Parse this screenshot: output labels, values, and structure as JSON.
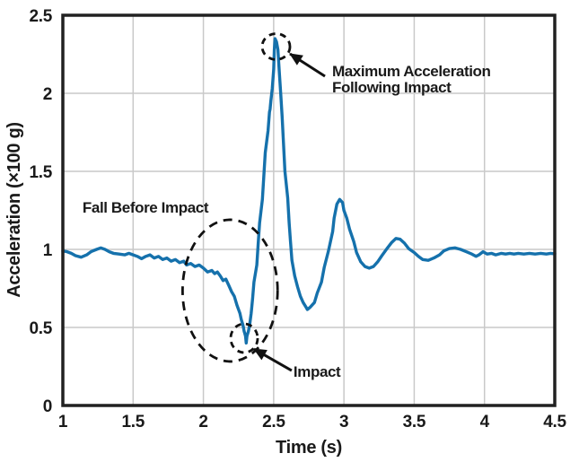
{
  "figure": {
    "background": "#ffffff"
  },
  "chart_data": {
    "type": "line",
    "title": "",
    "xlabel": "Time (s)",
    "ylabel": "Acceleration (×100 g)",
    "xlim": [
      1,
      4.5
    ],
    "ylim": [
      0,
      2.5
    ],
    "x_ticks": {
      "values": [
        1,
        1.5,
        2,
        2.5,
        3,
        3.5,
        4,
        4.5
      ],
      "labels": [
        "1",
        "1.5",
        "2",
        "2.5",
        "3",
        "3.5",
        "4",
        "4.5"
      ]
    },
    "y_ticks": {
      "values": [
        0,
        0.5,
        1,
        1.5,
        2,
        2.5
      ],
      "labels": [
        "0",
        "0.5",
        "1",
        "1.5",
        "2",
        "2.5"
      ]
    },
    "grid": {
      "show": true,
      "color": "#c9c9c9",
      "x_lines": [
        1.5,
        2,
        2.5,
        3,
        3.5,
        4
      ],
      "y_lines": [
        0.5,
        1,
        1.5,
        2
      ]
    },
    "frame_color": "#212121",
    "text_color": "#1a1a1a",
    "annotation_color": "#111111",
    "legend": {
      "show": false
    },
    "series": [
      {
        "name": "acceleration",
        "color": "#1571ac",
        "points": [
          [
            1.0,
            0.99
          ],
          [
            1.03,
            0.985
          ],
          [
            1.06,
            0.975
          ],
          [
            1.09,
            0.96
          ],
          [
            1.13,
            0.95
          ],
          [
            1.17,
            0.965
          ],
          [
            1.2,
            0.985
          ],
          [
            1.24,
            1.0
          ],
          [
            1.27,
            1.01
          ],
          [
            1.3,
            1.0
          ],
          [
            1.33,
            0.985
          ],
          [
            1.36,
            0.975
          ],
          [
            1.4,
            0.97
          ],
          [
            1.44,
            0.965
          ],
          [
            1.47,
            0.975
          ],
          [
            1.5,
            0.965
          ],
          [
            1.53,
            0.955
          ],
          [
            1.56,
            0.94
          ],
          [
            1.59,
            0.955
          ],
          [
            1.62,
            0.965
          ],
          [
            1.65,
            0.945
          ],
          [
            1.68,
            0.955
          ],
          [
            1.71,
            0.935
          ],
          [
            1.74,
            0.945
          ],
          [
            1.77,
            0.925
          ],
          [
            1.8,
            0.935
          ],
          [
            1.83,
            0.915
          ],
          [
            1.86,
            0.925
          ],
          [
            1.88,
            0.9
          ],
          [
            1.91,
            0.91
          ],
          [
            1.94,
            0.89
          ],
          [
            1.97,
            0.9
          ],
          [
            2.0,
            0.88
          ],
          [
            2.03,
            0.855
          ],
          [
            2.06,
            0.865
          ],
          [
            2.08,
            0.845
          ],
          [
            2.1,
            0.855
          ],
          [
            2.12,
            0.83
          ],
          [
            2.14,
            0.8
          ],
          [
            2.16,
            0.81
          ],
          [
            2.18,
            0.77
          ],
          [
            2.2,
            0.73
          ],
          [
            2.22,
            0.7
          ],
          [
            2.24,
            0.64
          ],
          [
            2.26,
            0.59
          ],
          [
            2.27,
            0.55
          ],
          [
            2.28,
            0.52
          ],
          [
            2.285,
            0.5
          ],
          [
            2.29,
            0.475
          ],
          [
            2.295,
            0.46
          ],
          [
            2.3,
            0.445
          ],
          [
            2.305,
            0.4
          ],
          [
            2.31,
            0.445
          ],
          [
            2.32,
            0.475
          ],
          [
            2.33,
            0.52
          ],
          [
            2.34,
            0.59
          ],
          [
            2.35,
            0.685
          ],
          [
            2.36,
            0.79
          ],
          [
            2.38,
            0.9
          ],
          [
            2.39,
            1.035
          ],
          [
            2.4,
            1.17
          ],
          [
            2.42,
            1.32
          ],
          [
            2.43,
            1.47
          ],
          [
            2.44,
            1.62
          ],
          [
            2.46,
            1.76
          ],
          [
            2.47,
            1.88
          ],
          [
            2.475,
            1.9
          ],
          [
            2.48,
            1.95
          ],
          [
            2.49,
            2.03
          ],
          [
            2.5,
            2.155
          ],
          [
            2.505,
            2.28
          ],
          [
            2.51,
            2.35
          ],
          [
            2.52,
            2.33
          ],
          [
            2.53,
            2.28
          ],
          [
            2.54,
            2.14
          ],
          [
            2.55,
            2.0
          ],
          [
            2.56,
            1.85
          ],
          [
            2.57,
            1.68
          ],
          [
            2.58,
            1.5
          ],
          [
            2.6,
            1.33
          ],
          [
            2.61,
            1.17
          ],
          [
            2.62,
            1.05
          ],
          [
            2.63,
            0.93
          ],
          [
            2.65,
            0.83
          ],
          [
            2.67,
            0.76
          ],
          [
            2.69,
            0.7
          ],
          [
            2.71,
            0.66
          ],
          [
            2.73,
            0.63
          ],
          [
            2.74,
            0.615
          ],
          [
            2.76,
            0.63
          ],
          [
            2.79,
            0.66
          ],
          [
            2.81,
            0.72
          ],
          [
            2.84,
            0.79
          ],
          [
            2.86,
            0.885
          ],
          [
            2.89,
            0.99
          ],
          [
            2.92,
            1.115
          ],
          [
            2.93,
            1.2
          ],
          [
            2.95,
            1.29
          ],
          [
            2.97,
            1.32
          ],
          [
            2.99,
            1.3
          ],
          [
            3.0,
            1.25
          ],
          [
            3.02,
            1.2
          ],
          [
            3.04,
            1.13
          ],
          [
            3.07,
            1.05
          ],
          [
            3.09,
            0.98
          ],
          [
            3.12,
            0.92
          ],
          [
            3.15,
            0.89
          ],
          [
            3.18,
            0.88
          ],
          [
            3.21,
            0.89
          ],
          [
            3.24,
            0.92
          ],
          [
            3.27,
            0.96
          ],
          [
            3.31,
            1.01
          ],
          [
            3.34,
            1.045
          ],
          [
            3.37,
            1.07
          ],
          [
            3.4,
            1.065
          ],
          [
            3.43,
            1.04
          ],
          [
            3.46,
            1.005
          ],
          [
            3.5,
            0.98
          ],
          [
            3.53,
            0.955
          ],
          [
            3.56,
            0.935
          ],
          [
            3.6,
            0.93
          ],
          [
            3.64,
            0.945
          ],
          [
            3.68,
            0.965
          ],
          [
            3.71,
            0.99
          ],
          [
            3.75,
            1.005
          ],
          [
            3.79,
            1.01
          ],
          [
            3.83,
            1.0
          ],
          [
            3.87,
            0.985
          ],
          [
            3.91,
            0.97
          ],
          [
            3.94,
            0.955
          ],
          [
            3.96,
            0.965
          ],
          [
            3.99,
            0.985
          ],
          [
            4.02,
            0.97
          ],
          [
            4.05,
            0.975
          ],
          [
            4.08,
            0.965
          ],
          [
            4.12,
            0.975
          ],
          [
            4.15,
            0.97
          ],
          [
            4.18,
            0.975
          ],
          [
            4.21,
            0.97
          ],
          [
            4.24,
            0.975
          ],
          [
            4.28,
            0.97
          ],
          [
            4.32,
            0.975
          ],
          [
            4.36,
            0.97
          ],
          [
            4.4,
            0.975
          ],
          [
            4.44,
            0.97
          ],
          [
            4.47,
            0.975
          ],
          [
            4.5,
            0.972
          ]
        ]
      }
    ],
    "annotations": {
      "fall_label": {
        "text": "Fall Before Impact",
        "t": 1.14,
        "v": 1.236
      },
      "fall_ellipse": {
        "t": 2.19,
        "v": 0.736,
        "rt": 0.338,
        "rv": 0.454
      },
      "impact_circle": {
        "t": 2.29,
        "v": 0.431,
        "rt": 0.096,
        "rv": 0.092
      },
      "peak_circle": {
        "t": 2.517,
        "v": 2.299,
        "rt": 0.099,
        "rv": 0.083
      },
      "max_label": {
        "lines": [
          "Maximum Acceleration",
          "Following Impact"
        ],
        "t": 2.916,
        "v": 2.109,
        "line_height": 18
      },
      "max_arrow": {
        "from": [
          2.865,
          2.109
        ],
        "to": [
          2.616,
          2.253
        ]
      },
      "impact_label": {
        "text": "Impact",
        "t": 2.641,
        "v": 0.184
      },
      "impact_arrow": {
        "from": [
          2.628,
          0.224
        ],
        "to": [
          2.36,
          0.362
        ]
      }
    }
  }
}
